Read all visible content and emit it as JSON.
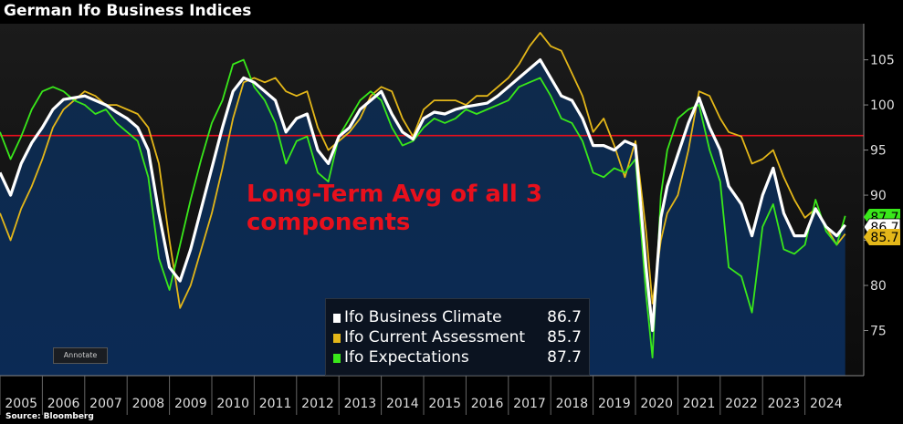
{
  "header": {
    "title": "German Ifo Business Indices"
  },
  "footer": {
    "source": "Source: Bloomberg"
  },
  "annotate_label": "Annotate",
  "annotation_text": "Long-Term Avg of all 3 components",
  "colors": {
    "background_top": "#151515",
    "area_fill": "#0e2a4b",
    "climate": "#ffffff",
    "current": "#e4b719",
    "expectations": "#39e81a",
    "average_line": "#e8101c"
  },
  "legend": [
    {
      "name": "Ifo Business Climate",
      "value": "86.7",
      "color": "#ffffff"
    },
    {
      "name": "Ifo Current Assessment",
      "value": "85.7",
      "color": "#e4b719"
    },
    {
      "name": "Ifo Expectations",
      "value": "87.7",
      "color": "#39e81a"
    }
  ],
  "chart_data": {
    "type": "line",
    "title": "German Ifo Business Indices",
    "x_ticks": [
      "2005",
      "2006",
      "2007",
      "2008",
      "2009",
      "2010",
      "2011",
      "2012",
      "2013",
      "2014",
      "2015",
      "2016",
      "2017",
      "2018",
      "2019",
      "2020",
      "2021",
      "2022",
      "2023",
      "2024"
    ],
    "xlim": [
      2005.0,
      2025.0
    ],
    "ylim": [
      70,
      109
    ],
    "y_ticks": [
      75,
      80,
      85,
      90,
      95,
      100,
      105
    ],
    "hline": {
      "value": 96.6,
      "label": "Long-Term Avg of all 3 components"
    },
    "grid": false,
    "legend_position": "bottom-center",
    "end_labels": [
      "87.7",
      "86.7",
      "85.7"
    ],
    "series": [
      {
        "name": "Ifo Business Climate",
        "color": "#ffffff",
        "x": [
          2005.0,
          2005.25,
          2005.5,
          2005.75,
          2006.0,
          2006.25,
          2006.5,
          2006.75,
          2007.0,
          2007.25,
          2007.5,
          2007.75,
          2008.0,
          2008.25,
          2008.5,
          2008.75,
          2009.0,
          2009.25,
          2009.5,
          2009.75,
          2010.0,
          2010.25,
          2010.5,
          2010.75,
          2011.0,
          2011.25,
          2011.5,
          2011.75,
          2012.0,
          2012.25,
          2012.5,
          2012.75,
          2013.0,
          2013.25,
          2013.5,
          2013.75,
          2014.0,
          2014.25,
          2014.5,
          2014.75,
          2015.0,
          2015.25,
          2015.5,
          2015.75,
          2016.0,
          2016.25,
          2016.5,
          2016.75,
          2017.0,
          2017.25,
          2017.5,
          2017.75,
          2018.0,
          2018.25,
          2018.5,
          2018.75,
          2019.0,
          2019.25,
          2019.5,
          2019.75,
          2020.0,
          2020.25,
          2020.4,
          2020.6,
          2020.75,
          2021.0,
          2021.25,
          2021.5,
          2021.75,
          2022.0,
          2022.2,
          2022.5,
          2022.75,
          2023.0,
          2023.25,
          2023.5,
          2023.75,
          2024.0,
          2024.25,
          2024.5,
          2024.75,
          2024.95
        ],
        "y": [
          92.5,
          90.0,
          93.5,
          95.8,
          97.5,
          99.5,
          100.6,
          100.8,
          101.0,
          100.5,
          100.0,
          99.2,
          98.5,
          97.5,
          95.0,
          88.0,
          82.0,
          80.5,
          84.0,
          88.5,
          93.0,
          97.5,
          101.5,
          103.0,
          102.5,
          101.5,
          100.5,
          97.0,
          98.5,
          99.0,
          95.0,
          93.5,
          96.5,
          97.5,
          99.5,
          100.5,
          101.5,
          99.0,
          97.0,
          96.2,
          98.5,
          99.2,
          99.0,
          99.5,
          99.8,
          100.0,
          100.2,
          101.0,
          102.0,
          103.0,
          104.0,
          105.0,
          103.0,
          101.0,
          100.5,
          98.5,
          95.5,
          95.5,
          95.0,
          96.0,
          95.5,
          82.0,
          75.0,
          87.5,
          91.0,
          94.5,
          98.0,
          100.8,
          97.5,
          95.0,
          91.0,
          89.0,
          85.5,
          90.0,
          93.0,
          88.0,
          85.5,
          85.5,
          88.5,
          86.5,
          85.5,
          86.7
        ]
      },
      {
        "name": "Ifo Current Assessment",
        "color": "#e4b719",
        "x": [
          2005.0,
          2005.25,
          2005.5,
          2005.75,
          2006.0,
          2006.25,
          2006.5,
          2006.75,
          2007.0,
          2007.25,
          2007.5,
          2007.75,
          2008.0,
          2008.25,
          2008.5,
          2008.75,
          2009.0,
          2009.25,
          2009.5,
          2009.75,
          2010.0,
          2010.25,
          2010.5,
          2010.75,
          2011.0,
          2011.25,
          2011.5,
          2011.75,
          2012.0,
          2012.25,
          2012.5,
          2012.75,
          2013.0,
          2013.25,
          2013.5,
          2013.75,
          2014.0,
          2014.25,
          2014.5,
          2014.75,
          2015.0,
          2015.25,
          2015.5,
          2015.75,
          2016.0,
          2016.25,
          2016.5,
          2016.75,
          2017.0,
          2017.25,
          2017.5,
          2017.75,
          2018.0,
          2018.25,
          2018.5,
          2018.75,
          2019.0,
          2019.25,
          2019.5,
          2019.75,
          2020.0,
          2020.25,
          2020.4,
          2020.6,
          2020.75,
          2021.0,
          2021.25,
          2021.5,
          2021.75,
          2022.0,
          2022.2,
          2022.5,
          2022.75,
          2023.0,
          2023.25,
          2023.5,
          2023.75,
          2024.0,
          2024.25,
          2024.5,
          2024.75,
          2024.95
        ],
        "y": [
          88.0,
          85.0,
          88.5,
          91.0,
          94.0,
          97.5,
          99.5,
          100.5,
          101.5,
          101.0,
          100.0,
          100.0,
          99.5,
          99.0,
          97.5,
          93.5,
          85.0,
          77.5,
          80.0,
          84.0,
          88.0,
          93.0,
          98.5,
          102.5,
          103.0,
          102.5,
          103.0,
          101.5,
          101.0,
          101.5,
          97.5,
          95.0,
          96.0,
          97.0,
          98.5,
          101.0,
          102.0,
          101.5,
          98.5,
          96.5,
          99.5,
          100.5,
          100.5,
          100.5,
          100.0,
          101.0,
          101.0,
          102.0,
          103.0,
          104.5,
          106.5,
          108.0,
          106.5,
          106.0,
          103.5,
          101.0,
          97.0,
          98.5,
          95.5,
          92.0,
          96.0,
          86.0,
          78.0,
          85.0,
          88.0,
          90.0,
          95.0,
          101.5,
          101.0,
          98.5,
          97.0,
          96.5,
          93.5,
          94.0,
          95.0,
          92.0,
          89.5,
          87.5,
          88.5,
          86.5,
          84.5,
          85.7
        ]
      },
      {
        "name": "Ifo Expectations",
        "color": "#39e81a",
        "x": [
          2005.0,
          2005.25,
          2005.5,
          2005.75,
          2006.0,
          2006.25,
          2006.5,
          2006.75,
          2007.0,
          2007.25,
          2007.5,
          2007.75,
          2008.0,
          2008.25,
          2008.5,
          2008.75,
          2009.0,
          2009.25,
          2009.5,
          2009.75,
          2010.0,
          2010.25,
          2010.5,
          2010.75,
          2011.0,
          2011.25,
          2011.5,
          2011.75,
          2012.0,
          2012.25,
          2012.5,
          2012.75,
          2013.0,
          2013.25,
          2013.5,
          2013.75,
          2014.0,
          2014.25,
          2014.5,
          2014.75,
          2015.0,
          2015.25,
          2015.5,
          2015.75,
          2016.0,
          2016.25,
          2016.5,
          2016.75,
          2017.0,
          2017.25,
          2017.5,
          2017.75,
          2018.0,
          2018.25,
          2018.5,
          2018.75,
          2019.0,
          2019.25,
          2019.5,
          2019.75,
          2020.0,
          2020.25,
          2020.4,
          2020.6,
          2020.75,
          2021.0,
          2021.25,
          2021.5,
          2021.75,
          2022.0,
          2022.2,
          2022.5,
          2022.75,
          2023.0,
          2023.25,
          2023.5,
          2023.75,
          2024.0,
          2024.25,
          2024.5,
          2024.75,
          2024.95
        ],
        "y": [
          97.0,
          94.0,
          96.5,
          99.5,
          101.5,
          102.0,
          101.5,
          100.5,
          100.0,
          99.0,
          99.5,
          98.0,
          97.0,
          96.0,
          92.0,
          83.0,
          79.5,
          84.5,
          89.5,
          94.0,
          98.0,
          100.5,
          104.5,
          105.0,
          102.0,
          100.5,
          98.0,
          93.5,
          96.0,
          96.5,
          92.5,
          91.5,
          96.5,
          98.5,
          100.5,
          101.5,
          100.5,
          97.5,
          95.5,
          96.0,
          97.5,
          98.5,
          98.0,
          98.5,
          99.5,
          99.0,
          99.5,
          100.0,
          100.5,
          102.0,
          102.5,
          103.0,
          101.0,
          98.5,
          98.0,
          96.0,
          92.5,
          92.0,
          93.0,
          92.5,
          94.0,
          79.0,
          72.0,
          90.0,
          95.0,
          98.5,
          99.5,
          100.0,
          95.0,
          91.5,
          82.0,
          81.0,
          77.0,
          86.5,
          89.0,
          84.0,
          83.5,
          84.5,
          89.5,
          86.0,
          84.5,
          87.7
        ]
      }
    ]
  }
}
